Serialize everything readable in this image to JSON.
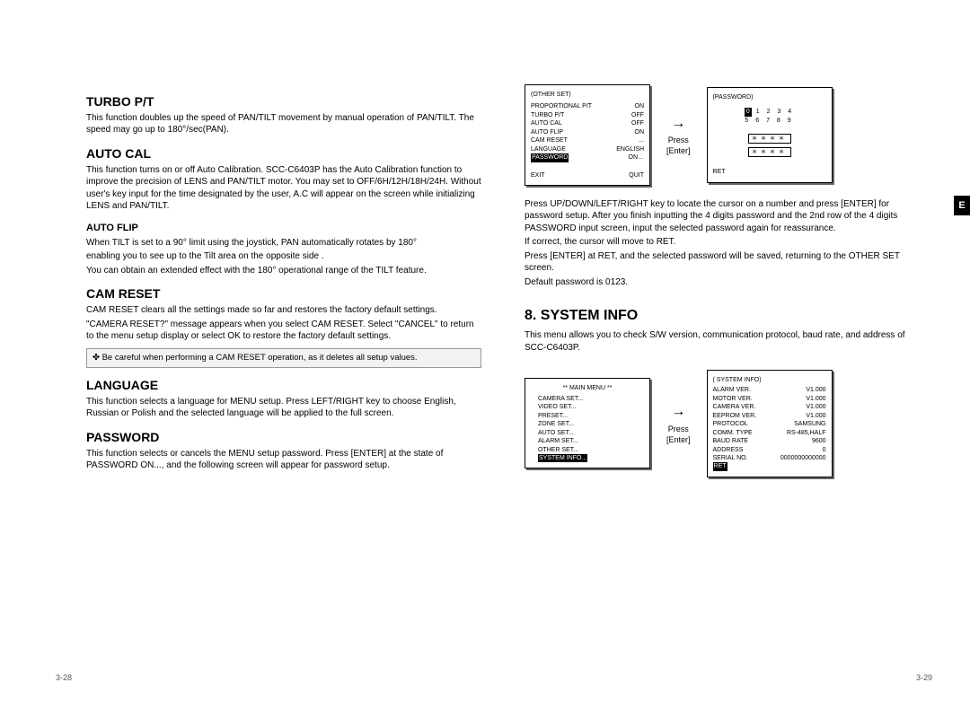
{
  "left": {
    "sections": {
      "turbo": {
        "title": "TURBO P/T",
        "body": "This function doubles up the speed of PAN/TILT movement by manual operation of PAN/TILT. The speed may go up to 180°/sec(PAN)."
      },
      "autocal": {
        "title": "AUTO CAL",
        "body": "This function turns on or off Auto Calibration. SCC-C6403P has the Auto Calibration function to improve the precision of LENS and PAN/TILT motor. You may set to OFF/6H/12H/18H/24H. Without user's key input for the time designated by the user, A.C will appear on the screen while initializing LENS and PAN/TILT."
      },
      "autoflip": {
        "title": "AUTO FLIP",
        "p1": "When TILT is set to a 90° limit using the joystick, PAN automatically rotates by 180°",
        "p2": "enabling you to see up to the Tilt area on the opposite side .",
        "p3": "You can obtain an extended effect with the 180° operational range of the TILT feature."
      },
      "camreset": {
        "title": "CAM RESET",
        "p1": "CAM RESET clears all the settings made so far and restores the factory default settings.",
        "p2": "\"CAMERA RESET?\" message appears when you select CAM RESET. Select \"CANCEL\" to return to the menu setup display or select OK to restore the factory default settings.",
        "note": "✤ Be careful when performing a CAM RESET operation, as it deletes all setup values."
      },
      "language": {
        "title": "LANGUAGE",
        "body": "This function selects a language for MENU setup. Press LEFT/RIGHT key to choose English, Russian or Polish and the selected language will be applied to the full screen."
      },
      "password": {
        "title": "PASSWORD",
        "body": "This function selects or cancels the MENU setup password. Press [ENTER] at the state of PASSWORD ON..., and the following screen will appear for password setup."
      }
    },
    "pagenum": "3-28"
  },
  "right": {
    "osd1": {
      "title": "(OTHER SET)",
      "rows": [
        [
          "PROPORTIONAL P/T",
          "ON"
        ],
        [
          "TURBO P/T",
          "OFF"
        ],
        [
          "AUTO CAL",
          "OFF"
        ],
        [
          "AUTO FLIP",
          "ON"
        ],
        [
          "CAM RESET",
          "..."
        ],
        [
          "LANGUAGE",
          "ENGLISH"
        ]
      ],
      "hl_row": [
        "PASSWORD",
        "ON…"
      ],
      "footer": [
        "EXIT",
        "QUIT"
      ]
    },
    "arrow1": {
      "glyph": "→",
      "label1": "Press",
      "label2": "[Enter]"
    },
    "osd2": {
      "title": "(PASSWORD)",
      "row1_hl": "0",
      "row1_rest": " 1  2  3  4",
      "row2": "5  6  7  8  9",
      "box1": "＊＊＊＊",
      "box2": "＊＊＊＊",
      "ret": "RET"
    },
    "para": {
      "p1": "Press UP/DOWN/LEFT/RIGHT key to locate the cursor on a number and press [ENTER] for password setup. After you finish inputting the 4 digits password and the 2nd row of the 4 digits PASSWORD input screen, input the selected password again for reassurance.",
      "p2": "If correct, the cursor will move to RET.",
      "p3": "Press [ENTER] at RET, and the selected password will be saved, returning to the OTHER SET screen.",
      "p4": "Default password is 0123."
    },
    "sysinfo": {
      "title": "8. SYSTEM INFO",
      "body": "This menu allows you to check S/W version, communication protocol, baud rate, and address of SCC-C6403P."
    },
    "osd3": {
      "title": "** MAIN MENU **",
      "items": [
        "CAMERA SET...",
        "VIDEO SET...",
        "PRESET...",
        "ZONE SET...",
        "AUTO SET...",
        "ALARM SET...",
        "OTHER SET..."
      ],
      "hl": "SYSTEM INFO..."
    },
    "arrow2": {
      "glyph": "→",
      "label1": "Press",
      "label2": "[Enter]"
    },
    "osd4": {
      "title": "( SYSTEM INFO)",
      "rows": [
        [
          "ALARM VER.",
          "V1.000"
        ],
        [
          "MOTOR VER.",
          "V1.000"
        ],
        [
          "CAMERA VER.",
          "V1.000"
        ],
        [
          "EEPROM VER.",
          "V1.000"
        ],
        [
          "PROTOCOL",
          "SAMSUNG"
        ],
        [
          "COMM. TYPE",
          "RS-485,HALF"
        ],
        [
          "BAUD RATE",
          "9600"
        ],
        [
          "ADDRESS",
          "0"
        ],
        [
          "SERIAL NO.",
          "0000000000000"
        ]
      ],
      "ret": "RET"
    },
    "pagenum": "3-29"
  },
  "sidetab": "E"
}
